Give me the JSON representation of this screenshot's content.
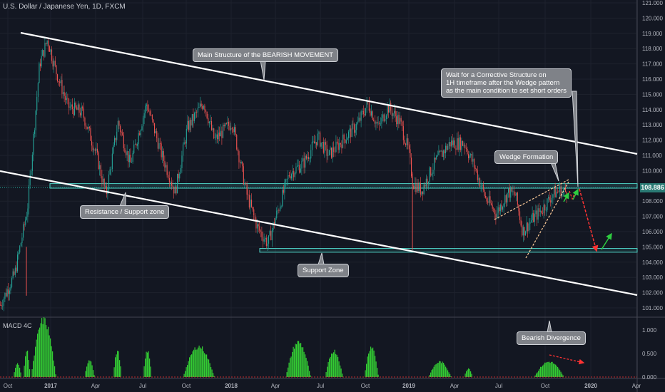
{
  "chart_data": [
    {
      "type": "candlestick",
      "title": "U.S. Dollar / Japanese Yen, 1D, FXCM",
      "x_ticks": [
        "Oct",
        "2017",
        "Apr",
        "Jul",
        "Oct",
        "2018",
        "Apr",
        "Jul",
        "Oct",
        "2019",
        "Apr",
        "Jul",
        "Oct",
        "2020",
        "Apr"
      ],
      "y_ticks": [
        101.0,
        102.0,
        103.0,
        104.0,
        105.0,
        106.0,
        107.0,
        108.0,
        109.0,
        110.0,
        111.0,
        112.0,
        113.0,
        114.0,
        115.0,
        116.0,
        117.0,
        118.0,
        119.0,
        120.0,
        121.0
      ],
      "ylim": [
        100.5,
        121.2
      ],
      "last_price": "108.886",
      "colors": {
        "up": "#26a69a",
        "down": "#ef5350",
        "background": "#131722",
        "trendline": "#ffffff",
        "zone": "#4dd0c4"
      },
      "zones": [
        {
          "name": "Resistance / Support zone",
          "from": 108.85,
          "to": 109.15
        },
        {
          "name": "Support Zone",
          "from": 104.65,
          "to": 104.9
        }
      ],
      "trendlines": [
        {
          "name": "channel-top",
          "start": [
            "Sep 2016",
            119.1
          ],
          "end": [
            "Apr 2020",
            111.0
          ]
        },
        {
          "name": "channel-bottom",
          "start": [
            "Sep 2016",
            110.0
          ],
          "end": [
            "Apr 2020",
            101.8
          ]
        }
      ],
      "annotations": {
        "main_structure": "Main Structure of the BEARISH MOVEMENT",
        "wait": "Wait for a Corrective Structure on\n1H timeframe after the Wedge pattern\nas the main condition to set short orders",
        "wedge": "Wedge Formation",
        "res_support": "Resistance / Support zone",
        "support": "Support Zone"
      },
      "projection": [
        108.9,
        108.4,
        108.9,
        104.8,
        105.9
      ]
    },
    {
      "type": "histogram",
      "title": "MACD 4C",
      "y_ticks": [
        0.0,
        0.5,
        1.0
      ],
      "ylim": [
        0,
        1.2
      ],
      "annotation": "Bearish Divergence",
      "color": "#33cc33"
    }
  ],
  "macd_title": "MACD 4C"
}
